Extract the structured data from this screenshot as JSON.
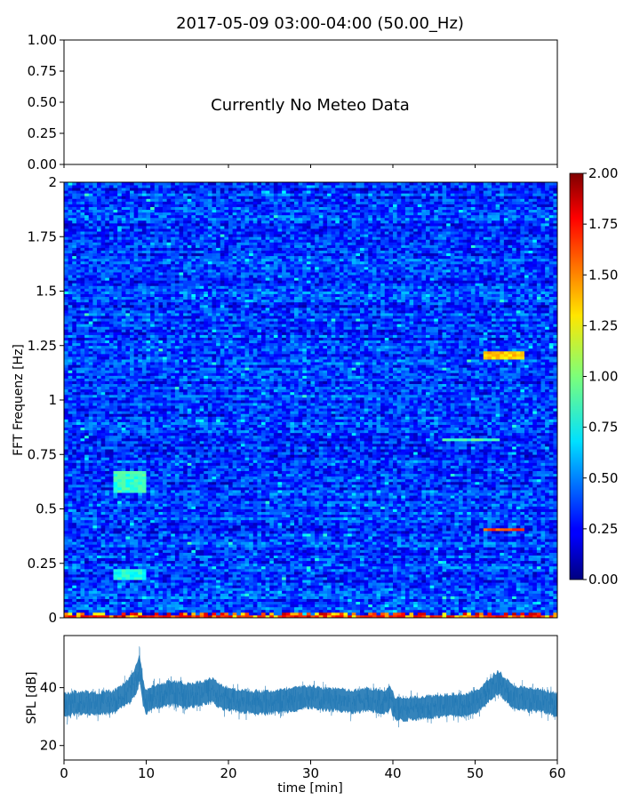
{
  "figure": {
    "title": "2017-05-09 03:00-04:00 (50.00_Hz)"
  },
  "chart_data": [
    {
      "type": "table",
      "message": "Currently No Meteo Data",
      "ylim": [
        0,
        1
      ],
      "yticks": [
        "0.00",
        "0.25",
        "0.50",
        "0.75",
        "1.00"
      ],
      "xlim": [
        0,
        60
      ],
      "grid": false
    },
    {
      "type": "heatmap",
      "xlabel": "",
      "ylabel": "FFT Frequenz [Hz]",
      "xlim": [
        0,
        60
      ],
      "ylim": [
        0,
        2
      ],
      "yticks": [
        "0",
        "0.25",
        "0.5",
        "0.75",
        "1",
        "1.25",
        "1.5",
        "1.75",
        "2"
      ],
      "colormap": "jet",
      "colorbar": {
        "range": [
          0,
          2
        ],
        "ticks": [
          "0.00",
          "0.25",
          "0.50",
          "0.75",
          "1.00",
          "1.25",
          "1.50",
          "1.75",
          "2.00"
        ]
      },
      "background_level": 0.35,
      "noise_level": 0.4,
      "features": [
        {
          "t_start": 6,
          "t_end": 10,
          "f_start": 0.58,
          "f_end": 0.68,
          "value": 0.85
        },
        {
          "t_start": 0,
          "t_end": 60,
          "f_start": 0.0,
          "f_end": 0.012,
          "value": 1.7
        },
        {
          "t_start": 51,
          "t_end": 56,
          "f_start": 1.19,
          "f_end": 1.22,
          "value": 1.35
        },
        {
          "t_start": 51,
          "t_end": 56,
          "f_start": 0.395,
          "f_end": 0.415,
          "value": 1.6
        },
        {
          "t_start": 46,
          "t_end": 53,
          "f_start": 0.81,
          "f_end": 0.83,
          "value": 0.9
        },
        {
          "t_start": 6,
          "t_end": 10,
          "f_start": 0.18,
          "f_end": 0.22,
          "value": 0.8
        }
      ]
    },
    {
      "type": "area",
      "xlabel": "time [min]",
      "ylabel": "SPL [dB]",
      "xlim": [
        0,
        60
      ],
      "ylim": [
        15,
        58
      ],
      "xticks": [
        0,
        10,
        20,
        30,
        40,
        50,
        60
      ],
      "yticks": [
        20,
        40
      ],
      "series": [
        {
          "color": "#1f77b4",
          "x": [
            0,
            2,
            4,
            6,
            7,
            8,
            8.8,
            9.2,
            9.6,
            10,
            11,
            13,
            15,
            17,
            18,
            19,
            21,
            23,
            25,
            27,
            29,
            30,
            31,
            33,
            35,
            37,
            38,
            39,
            39.7,
            40.2,
            41,
            43,
            45,
            47,
            49,
            50,
            51,
            52,
            52.8,
            53.5,
            54.5,
            56,
            58,
            60
          ],
          "mid": [
            34,
            35,
            34.5,
            35,
            37,
            39,
            43,
            47,
            39,
            35,
            37,
            38.5,
            37.5,
            38.5,
            39.5,
            37,
            35.5,
            35,
            35,
            35.5,
            36.5,
            37,
            36,
            36,
            35,
            36,
            35.5,
            35,
            36.5,
            33,
            32.5,
            33,
            33.5,
            34,
            34,
            35,
            37,
            40,
            42,
            40,
            37,
            36,
            35.5,
            34
          ],
          "high": [
            41,
            42,
            41.5,
            42,
            44,
            47,
            52,
            56,
            46,
            42,
            44,
            45.5,
            44.5,
            45.5,
            46.5,
            44,
            42.5,
            42,
            42,
            42.5,
            43.5,
            44,
            43,
            43,
            42,
            43,
            42.5,
            42,
            44,
            40,
            39.5,
            40,
            40.5,
            41,
            41,
            42,
            44,
            47,
            49,
            47,
            44,
            43,
            42.5,
            41
          ],
          "low": [
            27,
            28,
            27.5,
            28,
            30,
            31,
            34,
            38,
            30,
            28,
            29,
            30.5,
            29.5,
            30.5,
            31.5,
            29,
            28.5,
            28,
            28,
            28.5,
            29.5,
            30,
            29,
            29,
            28,
            29,
            28.5,
            28,
            29,
            26,
            25.5,
            26,
            26.5,
            27,
            27,
            28,
            30,
            33,
            35,
            33,
            30,
            29,
            28.5,
            27
          ]
        }
      ]
    }
  ]
}
